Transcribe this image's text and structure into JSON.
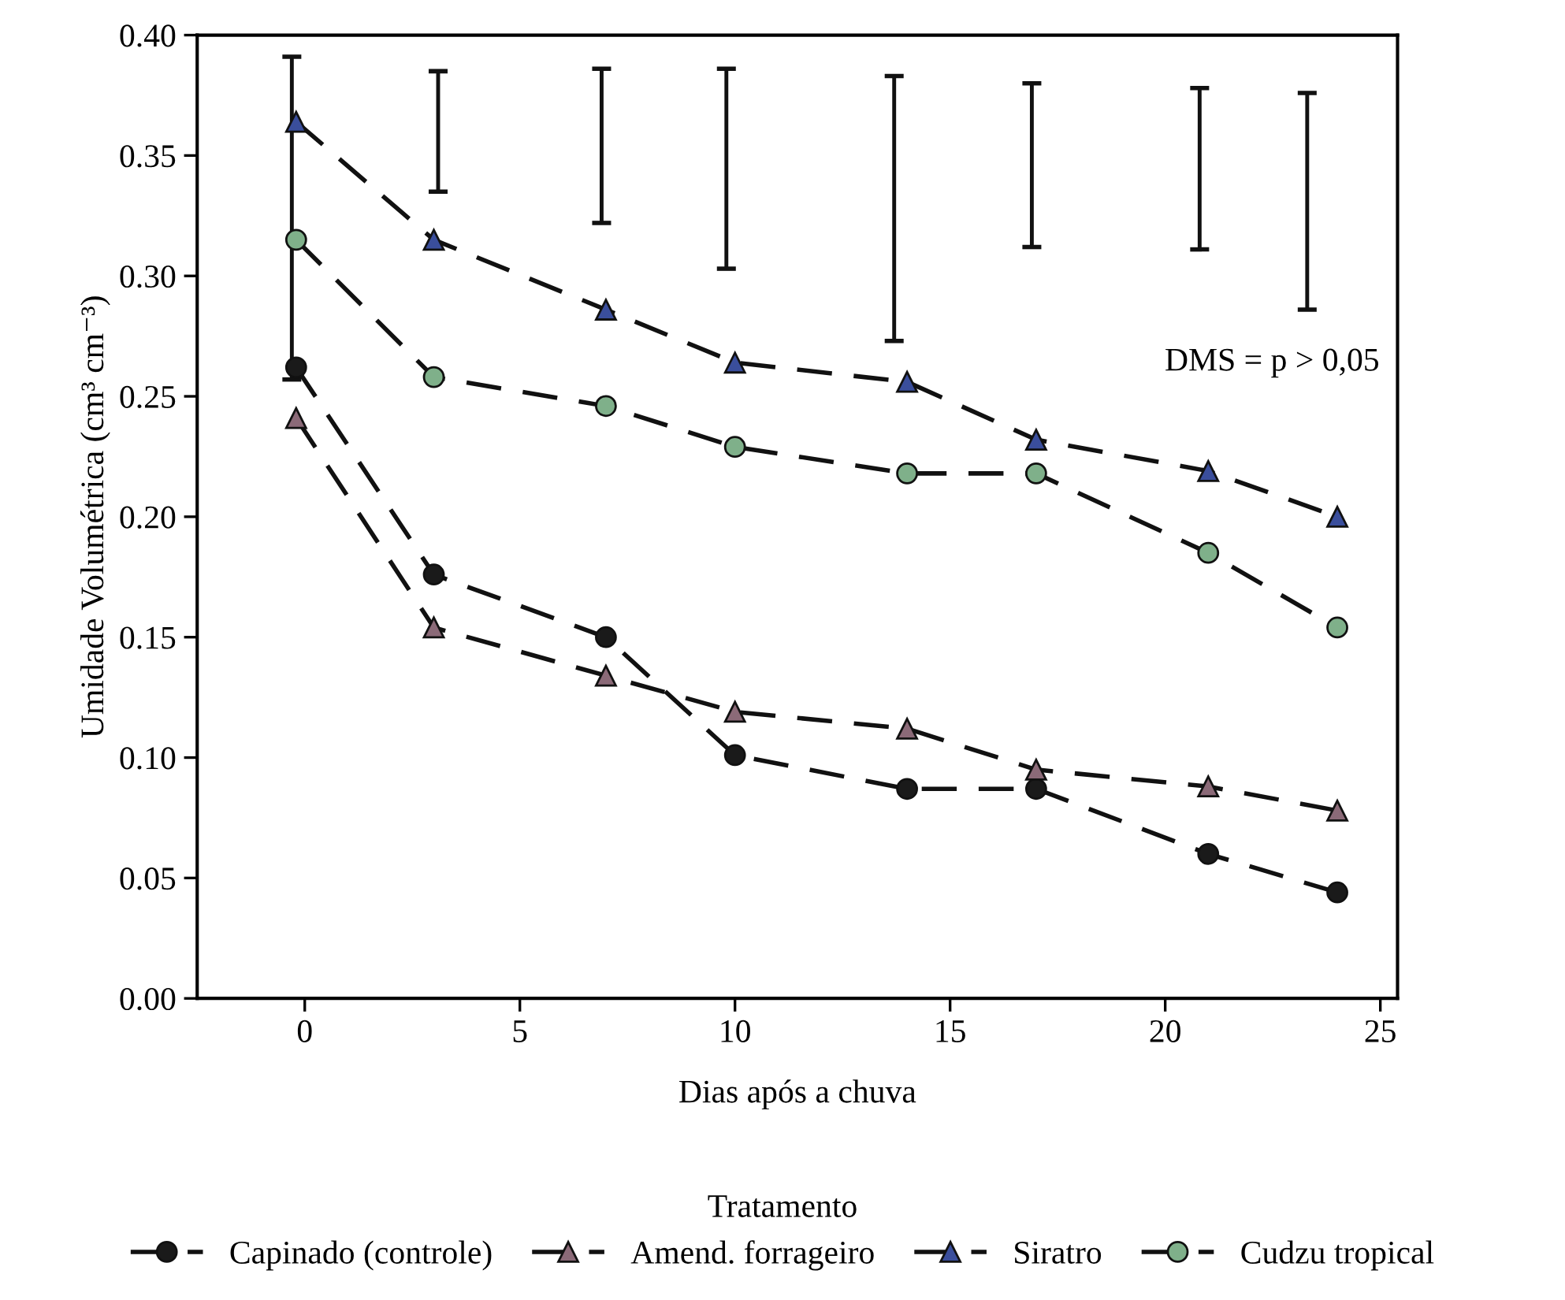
{
  "chart_data": {
    "type": "line",
    "xlabel": "Dias após a chuva",
    "ylabel": "Umidade Volumétrica (cm³ cm⁻³)",
    "legend_title": "Tratamento",
    "legend": "bottom",
    "line_style": "dashed",
    "x": [
      -0.2,
      3,
      7,
      10,
      14,
      17,
      21,
      24
    ],
    "xlim": [
      -2.5,
      25.4
    ],
    "xticks": [
      0,
      5,
      10,
      15,
      20,
      25
    ],
    "ylim": [
      0,
      0.4
    ],
    "yticks": [
      {
        "value": 0,
        "label": "0.00"
      },
      {
        "value": 0.05,
        "label": "0.05"
      },
      {
        "value": 0.1,
        "label": "0.10"
      },
      {
        "value": 0.15,
        "label": "0.15"
      },
      {
        "value": 0.2,
        "label": "0.20"
      },
      {
        "value": 0.25,
        "label": "0.25"
      },
      {
        "value": 0.3,
        "label": "0.30"
      },
      {
        "value": 0.35,
        "label": "0.35"
      },
      {
        "value": 0.4,
        "label": "0.40"
      }
    ],
    "annotations": [
      "DMS = p > 0,05"
    ],
    "series": [
      {
        "name": "Capinado (controle)",
        "color": "#1a1a1a",
        "marker": "circle",
        "values": [
          0.262,
          0.176,
          0.15,
          0.101,
          0.087,
          0.087,
          0.06,
          0.044
        ]
      },
      {
        "name": "Amend. forrageiro",
        "color": "#8b6a78",
        "marker": "triangle",
        "values": [
          0.241,
          0.154,
          0.134,
          0.119,
          0.112,
          0.095,
          0.088,
          0.078
        ]
      },
      {
        "name": "Siratro",
        "color": "#3a4e9c",
        "marker": "triangle",
        "values": [
          0.364,
          0.315,
          0.286,
          0.264,
          0.256,
          0.232,
          0.219,
          0.2
        ]
      },
      {
        "name": "Cudzu tropical",
        "color": "#7fb08a",
        "marker": "circle",
        "values": [
          0.315,
          0.258,
          0.246,
          0.229,
          0.218,
          0.218,
          0.185,
          0.154
        ]
      },
      {
        "type": "bar",
        "color": "#111111",
        "x": [
          -0.3,
          3.1,
          6.9,
          9.8,
          13.7,
          16.9,
          20.8,
          23.3
        ],
        "base": [
          0.257,
          0.335,
          0.322,
          0.303,
          0.273,
          0.312,
          0.311,
          0.286
        ],
        "values": [
          0.134,
          0.05,
          0.064,
          0.083,
          0.11,
          0.068,
          0.067,
          0.09
        ]
      }
    ]
  }
}
